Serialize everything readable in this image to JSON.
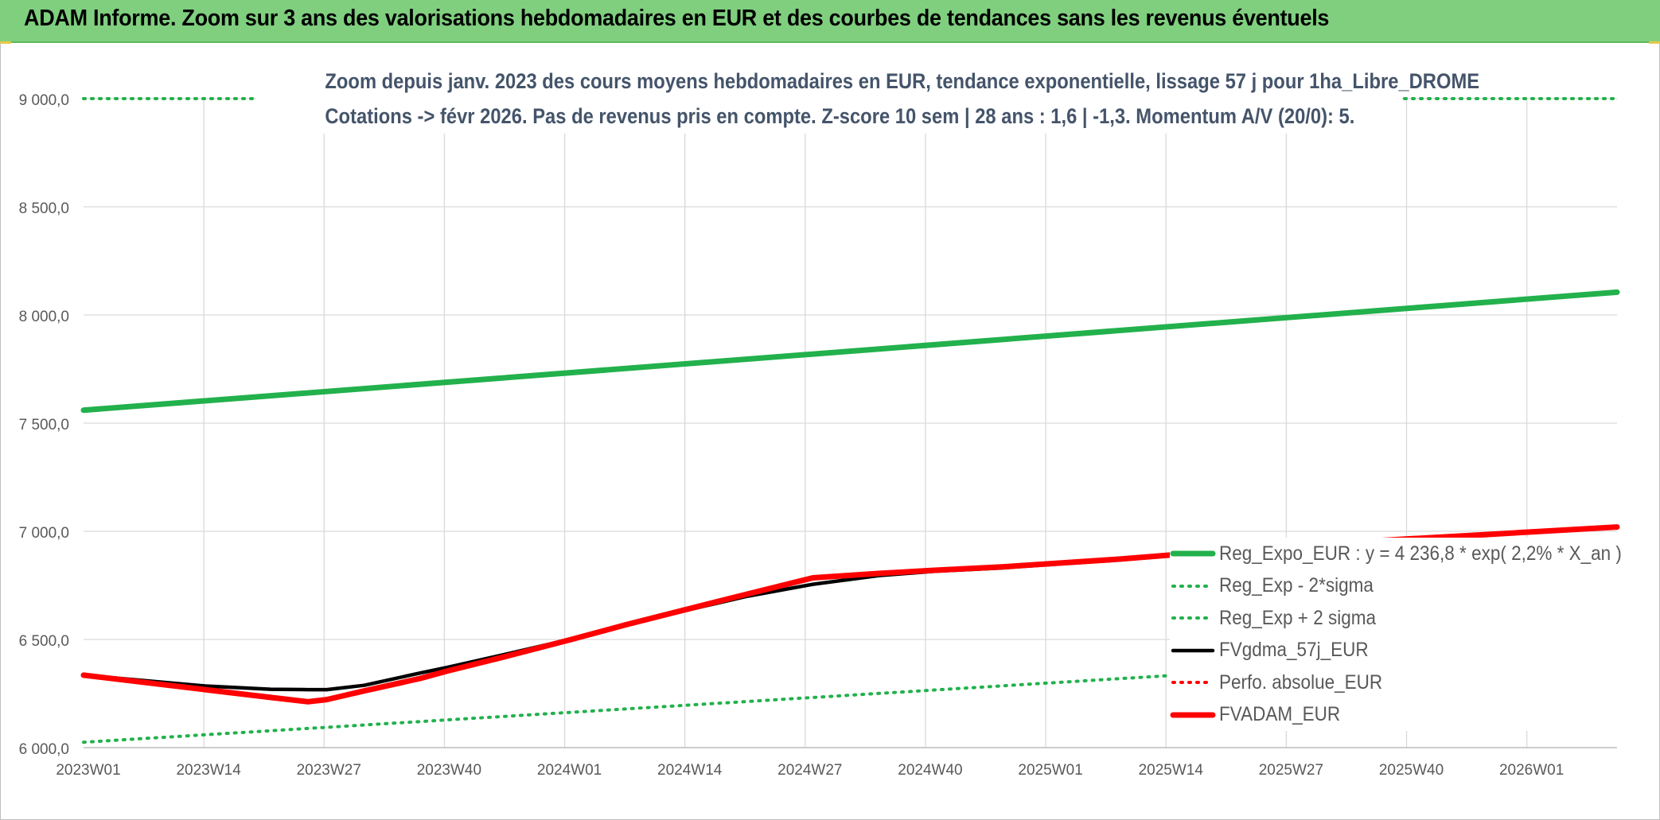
{
  "banner": {
    "title": "ADAM Informe. Zoom sur 3 ans des valorisations hebdomadaires en EUR et des courbes de tendances sans les revenus éventuels"
  },
  "chart_data": {
    "type": "line",
    "title_line1": "Zoom depuis janv. 2023 des cours moyens hebdomadaires en EUR, tendance exponentielle, lissage 57 j pour 1ha_Libre_DROME",
    "title_line2": "Cotations -> févr 2026. Pas de revenus pris en compte. Z-score 10 sem | 28 ans : 1,6 | -1,3. Momentum A/V (20/0): 5.",
    "xlabel": "",
    "ylabel": "",
    "ylim": [
      6000,
      9000
    ],
    "yticks": [
      "9 000,0",
      "8 500,0",
      "8 000,0",
      "7 500,0",
      "7 000,0",
      "6 500,0",
      "6 000,0"
    ],
    "ytick_values": [
      9000,
      8500,
      8000,
      7500,
      7000,
      6500,
      6000
    ],
    "x_tick_labels": [
      "2023W01",
      "2023W14",
      "2023W27",
      "2023W40",
      "2024W01",
      "2024W14",
      "2024W27",
      "2024W40",
      "2025W01",
      "2025W14",
      "2025W27",
      "2025W40",
      "2026W01"
    ],
    "x_range": [
      0,
      164
    ],
    "grid": true,
    "legend_position": "bottom-right",
    "series": [
      {
        "name": "Reg_Expo_EUR : y = 4 236,8 * exp( 2,2% *  X_an )",
        "color": "#22b14c",
        "style": "solid-thick",
        "x": [
          0,
          164
        ],
        "values": [
          7560,
          8105
        ]
      },
      {
        "name": "Reg_Exp - 2*sigma",
        "color": "#22b14c",
        "style": "dotted",
        "x": [
          0,
          164
        ],
        "values": [
          6025,
          6460
        ]
      },
      {
        "name": "Reg_Exp + 2 sigma",
        "color": "#22b14c",
        "style": "dotted",
        "x": [
          0,
          164
        ],
        "values": [
          9000,
          9000
        ]
      },
      {
        "name": "FVgdma_57j_EUR",
        "color": "#000000",
        "style": "solid",
        "x": [
          0,
          13,
          20,
          24,
          26,
          30,
          36,
          39,
          45,
          52,
          58,
          65,
          71,
          78,
          85,
          91,
          98,
          104,
          111,
          117,
          124,
          130,
          137,
          143,
          150,
          156,
          164
        ],
        "values": [
          6335,
          6285,
          6270,
          6268,
          6268,
          6288,
          6345,
          6372,
          6430,
          6500,
          6565,
          6640,
          6700,
          6755,
          6795,
          6815,
          6830,
          6848,
          6868,
          6890,
          6910,
          6932,
          6950,
          6965,
          6982,
          6998,
          7018
        ]
      },
      {
        "name": "Perfo. absolue_EUR",
        "color": "#ff0000",
        "style": "dotted",
        "x": [
          0,
          13,
          20,
          24,
          26,
          30,
          36,
          39,
          45,
          52,
          58,
          65,
          71,
          78,
          85,
          91,
          98,
          104,
          111,
          117,
          124,
          130,
          137,
          143,
          150,
          156,
          164
        ],
        "values": [
          6335,
          6268,
          6232,
          6212,
          6222,
          6262,
          6320,
          6355,
          6420,
          6498,
          6568,
          6645,
          6710,
          6785,
          6805,
          6820,
          6835,
          6852,
          6872,
          6893,
          6912,
          6935,
          6953,
          6968,
          6985,
          7000,
          7020
        ]
      },
      {
        "name": "FVADAM_EUR",
        "color": "#ff0000",
        "style": "solid-thick",
        "x": [
          0,
          13,
          20,
          24,
          26,
          30,
          36,
          39,
          45,
          52,
          58,
          65,
          71,
          78,
          85,
          91,
          98,
          104,
          111,
          117,
          124,
          130,
          137,
          143,
          150,
          156,
          164
        ],
        "values": [
          6335,
          6268,
          6232,
          6212,
          6222,
          6262,
          6320,
          6355,
          6420,
          6498,
          6568,
          6645,
          6710,
          6785,
          6805,
          6820,
          6835,
          6852,
          6872,
          6893,
          6912,
          6935,
          6953,
          6968,
          6985,
          7000,
          7020
        ]
      }
    ]
  }
}
